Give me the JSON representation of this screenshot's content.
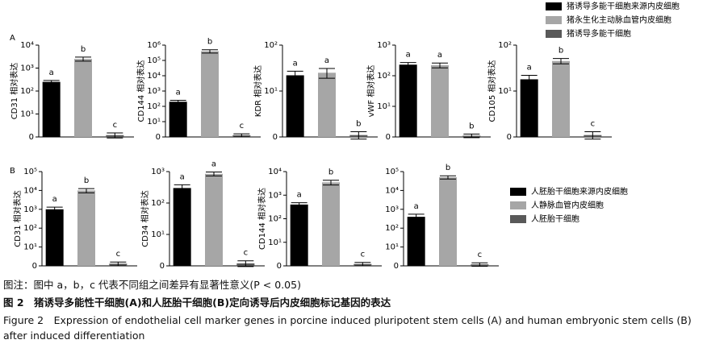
{
  "panel_labels": [
    "A",
    "B"
  ],
  "legends": [
    {
      "items": [
        {
          "name": "猪诱导多能干细胞来源内皮细胞",
          "color": "#000000"
        },
        {
          "name": "猪永生化主动脉血管内皮细胞",
          "color": "#a6a6a6"
        },
        {
          "name": "猪诱导多能干细胞",
          "color": "#595959"
        }
      ]
    },
    {
      "items": [
        {
          "name": "人胚胎干细胞来源内皮细胞",
          "color": "#000000"
        },
        {
          "name": "人静脉血管内皮细胞",
          "color": "#a6a6a6"
        },
        {
          "name": "人胚胎干细胞",
          "color": "#595959"
        }
      ]
    }
  ],
  "chart_data": [
    {
      "type": "bar",
      "log": true,
      "ylabel": "CD31 相对表达",
      "categories": [
        null,
        null,
        null
      ],
      "values": [
        250,
        2500,
        1.2
      ],
      "errors": [
        40,
        500,
        0.3
      ],
      "colors": [
        "#000000",
        "#a6a6a6",
        "#595959"
      ],
      "annotations": [
        "a",
        "b",
        "c"
      ],
      "ylim": [
        1,
        10000
      ],
      "yticks": [
        {
          "value": 1,
          "label": "0"
        },
        {
          "value": 10,
          "label": "10¹"
        },
        {
          "value": 100,
          "label": "10²"
        },
        {
          "value": 1000,
          "label": "10³"
        },
        {
          "value": 10000,
          "label": "10⁴"
        }
      ]
    },
    {
      "type": "bar",
      "log": true,
      "ylabel": "CD144 相对表达",
      "categories": [
        null,
        null,
        null
      ],
      "values": [
        200,
        400000,
        1.3
      ],
      "errors": [
        50,
        100000,
        0.3
      ],
      "colors": [
        "#000000",
        "#a6a6a6",
        "#595959"
      ],
      "annotations": [
        "a",
        "b",
        "c"
      ],
      "ylim": [
        1,
        1000000
      ],
      "yticks": [
        {
          "value": 1,
          "label": "0"
        },
        {
          "value": 10,
          "label": "10¹"
        },
        {
          "value": 100,
          "label": "10²"
        },
        {
          "value": 1000,
          "label": "10³"
        },
        {
          "value": 10000,
          "label": "10⁴"
        },
        {
          "value": 100000,
          "label": "10⁵"
        },
        {
          "value": 1000000,
          "label": "10⁶"
        }
      ]
    },
    {
      "type": "bar",
      "log": true,
      "ylabel": "KDR 相对表达",
      "categories": [
        null,
        null,
        null
      ],
      "values": [
        22,
        25,
        1.1
      ],
      "errors": [
        5,
        6,
        0.2
      ],
      "colors": [
        "#000000",
        "#a6a6a6",
        "#595959"
      ],
      "annotations": [
        "a",
        "a",
        "b"
      ],
      "ylim": [
        1,
        100
      ],
      "yticks": [
        {
          "value": 1,
          "label": "0"
        },
        {
          "value": 10,
          "label": "10¹"
        },
        {
          "value": 100,
          "label": "10²"
        }
      ]
    },
    {
      "type": "bar",
      "log": true,
      "ylabel": "vWF 相对表达",
      "categories": [
        null,
        null,
        null
      ],
      "values": [
        230,
        220,
        1.1
      ],
      "errors": [
        40,
        40,
        0.15
      ],
      "colors": [
        "#000000",
        "#a6a6a6",
        "#595959"
      ],
      "annotations": [
        "a",
        "a",
        "b"
      ],
      "ylim": [
        1,
        1000
      ],
      "yticks": [
        {
          "value": 1,
          "label": "0"
        },
        {
          "value": 10,
          "label": "10¹"
        },
        {
          "value": 100,
          "label": "10²"
        },
        {
          "value": 1000,
          "label": "10³"
        }
      ]
    },
    {
      "type": "bar",
      "log": true,
      "ylabel": "CD105 相对表达",
      "categories": [
        null,
        null,
        null
      ],
      "values": [
        18,
        45,
        1.1
      ],
      "errors": [
        4,
        6,
        0.2
      ],
      "colors": [
        "#000000",
        "#a6a6a6",
        "#595959"
      ],
      "annotations": [
        "a",
        "b",
        "c"
      ],
      "ylim": [
        1,
        100
      ],
      "yticks": [
        {
          "value": 1,
          "label": "0"
        },
        {
          "value": 10,
          "label": "10¹"
        },
        {
          "value": 100,
          "label": "10²"
        }
      ]
    },
    {
      "type": "bar",
      "log": true,
      "ylabel": "CD31 相对表达",
      "categories": [
        null,
        null,
        null
      ],
      "values": [
        1000,
        10000,
        1.3
      ],
      "errors": [
        300,
        2500,
        0.3
      ],
      "colors": [
        "#000000",
        "#a6a6a6",
        "#595959"
      ],
      "annotations": [
        "a",
        "b",
        "c"
      ],
      "ylim": [
        1,
        100000
      ],
      "yticks": [
        {
          "value": 1,
          "label": "0"
        },
        {
          "value": 10,
          "label": "10¹"
        },
        {
          "value": 100,
          "label": "10²"
        },
        {
          "value": 1000,
          "label": "10³"
        },
        {
          "value": 10000,
          "label": "10⁴"
        },
        {
          "value": 100000,
          "label": "10⁵"
        }
      ]
    },
    {
      "type": "bar",
      "log": true,
      "ylabel": "CD34 相对表达",
      "categories": [
        null,
        null,
        null
      ],
      "values": [
        300,
        850,
        1.2
      ],
      "errors": [
        80,
        120,
        0.25
      ],
      "colors": [
        "#000000",
        "#a6a6a6",
        "#595959"
      ],
      "annotations": [
        "a",
        "a",
        "c"
      ],
      "ylim": [
        1,
        1000
      ],
      "yticks": [
        {
          "value": 1,
          "label": "0"
        },
        {
          "value": 10,
          "label": "10¹"
        },
        {
          "value": 100,
          "label": "10²"
        },
        {
          "value": 1000,
          "label": "10³"
        }
      ]
    },
    {
      "type": "bar",
      "log": true,
      "ylabel": "CD144 相对表达",
      "categories": [
        null,
        null,
        null
      ],
      "values": [
        400,
        3500,
        1.2
      ],
      "errors": [
        80,
        800,
        0.2
      ],
      "colors": [
        "#000000",
        "#a6a6a6",
        "#595959"
      ],
      "annotations": [
        "a",
        "b",
        "c"
      ],
      "ylim": [
        1,
        10000
      ],
      "yticks": [
        {
          "value": 1,
          "label": "0"
        },
        {
          "value": 10,
          "label": "10¹"
        },
        {
          "value": 100,
          "label": "10²"
        },
        {
          "value": 1000,
          "label": "10³"
        },
        {
          "value": 10000,
          "label": "10⁴"
        }
      ]
    },
    {
      "type": "bar",
      "log": true,
      "categories": [
        null,
        null,
        null
      ],
      "values": [
        400,
        50000,
        1.2
      ],
      "errors": [
        150,
        10000,
        0.25
      ],
      "colors": [
        "#000000",
        "#a6a6a6",
        "#595959"
      ],
      "annotations": [
        "a",
        "b",
        "c"
      ],
      "ylim": [
        1,
        100000
      ],
      "yticks": [
        {
          "value": 1,
          "label": "0"
        },
        {
          "value": 10,
          "label": "10¹"
        },
        {
          "value": 100,
          "label": "10²"
        },
        {
          "value": 1000,
          "label": "10³"
        },
        {
          "value": 10000,
          "label": "10⁴"
        },
        {
          "value": 100000,
          "label": "10⁵"
        }
      ]
    }
  ],
  "caption": {
    "note": "图注：图中 a，b，c 代表不同组之间差异有显著性意义(P < 0.05)",
    "title_cn": "图 2　猪诱导多能性干细胞(A)和人胚胎干细胞(B)定向诱导后内皮细胞标记基因的表达",
    "title_en": "Figure 2　Expression of endothelial cell marker genes in porcine induced pluripotent stem cells (A) and human embryonic stem cells (B) after induced differentiation"
  }
}
